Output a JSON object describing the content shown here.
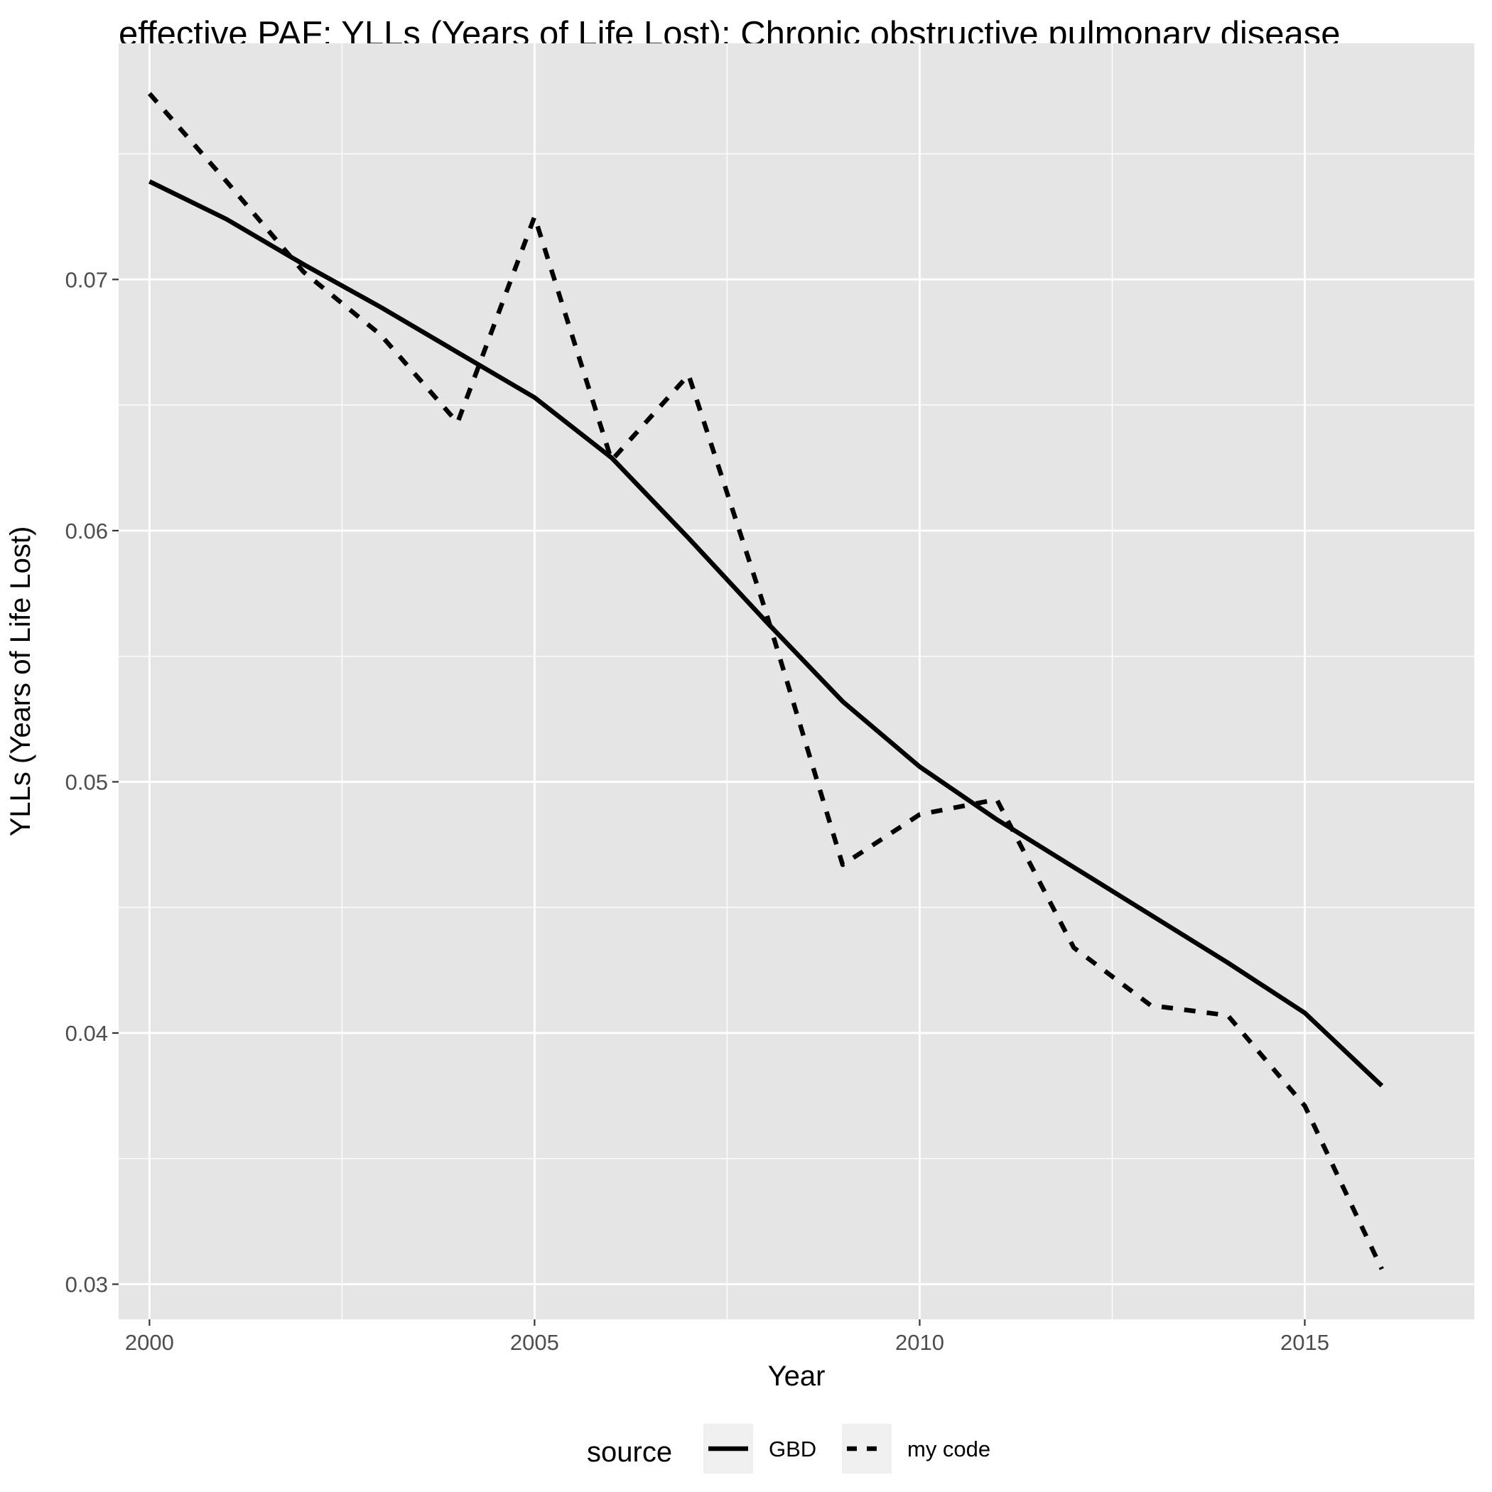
{
  "chart_data": {
    "type": "line",
    "title": "effective PAF; YLLs (Years of Life Lost); Chronic obstructive pulmonary disease",
    "xlabel": "Year",
    "ylabel": "YLLs (Years of Life Lost)",
    "xlim": [
      1999.6,
      2017.2
    ],
    "ylim": [
      0.0286,
      0.0794
    ],
    "xticks": [
      2000,
      2005,
      2010,
      2015
    ],
    "xtick_labels": [
      "2000",
      "2005",
      "2010",
      "2015"
    ],
    "xminor": [
      2002.5,
      2007.5,
      2012.5
    ],
    "yticks": [
      0.03,
      0.04,
      0.05,
      0.06,
      0.07
    ],
    "ytick_labels": [
      "0.03",
      "0.04",
      "0.05",
      "0.06",
      "0.07"
    ],
    "yminor": [
      0.035,
      0.045,
      0.055,
      0.065,
      0.075
    ],
    "grid": true,
    "legend": {
      "title": "source",
      "position": "bottom"
    },
    "colors": {
      "panel": "#e5e5e5",
      "grid": "#ffffff",
      "line": "#000000",
      "legend_key": "#f0f0f0",
      "tick_text": "#4d4d4d"
    },
    "x": [
      2000,
      2001,
      2002,
      2003,
      2004,
      2005,
      2006,
      2007,
      2008,
      2009,
      2010,
      2011,
      2012,
      2013,
      2014,
      2015,
      2016
    ],
    "series": [
      {
        "name": "GBD",
        "linetype": "solid",
        "values": [
          0.0739,
          0.0724,
          0.0706,
          0.0689,
          0.0671,
          0.0653,
          0.0629,
          0.0597,
          0.0564,
          0.0532,
          0.0506,
          0.0485,
          0.0466,
          0.0447,
          0.0428,
          0.0408,
          0.0379
        ]
      },
      {
        "name": "my code",
        "linetype": "dashed",
        "values": [
          0.0774,
          0.0739,
          0.0703,
          0.0678,
          0.0643,
          0.0725,
          0.0628,
          0.0662,
          0.0568,
          0.0467,
          0.0487,
          0.0493,
          0.0434,
          0.0411,
          0.0407,
          0.0371,
          0.0306
        ]
      }
    ]
  }
}
